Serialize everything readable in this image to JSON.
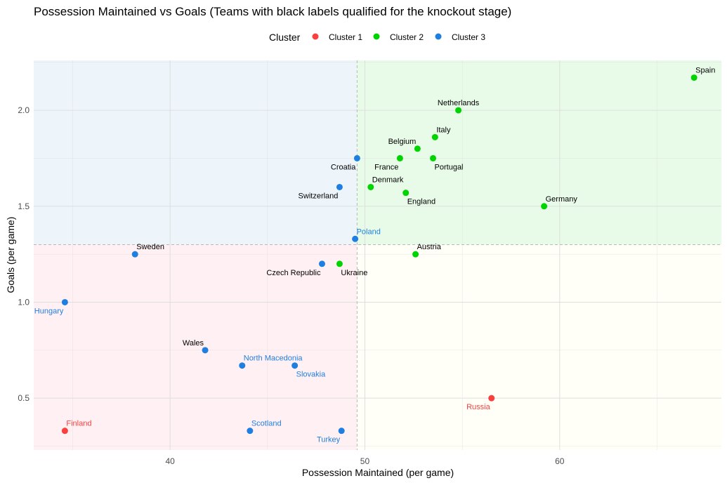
{
  "chart_data": {
    "type": "scatter",
    "title": "Possession Maintained vs Goals (Teams with black labels qualified for the knockout stage)",
    "xlabel": "Possession Maintained (per game)",
    "ylabel": "Goals (per game)",
    "xlim": [
      33.0,
      68.3
    ],
    "ylim": [
      0.23,
      2.26
    ],
    "x_ticks": [
      40,
      50,
      60
    ],
    "y_ticks": [
      0.5,
      1.0,
      1.5,
      2.0
    ],
    "grid": true,
    "legend": {
      "title": "Cluster",
      "position": "top",
      "entries": [
        {
          "name": "Cluster 1",
          "color": "#f8413e"
        },
        {
          "name": "Cluster 2",
          "color": "#00d400"
        },
        {
          "name": "Cluster 3",
          "color": "#1f7fe0"
        }
      ]
    },
    "reference_lines": {
      "x": 49.6,
      "y": 1.3
    },
    "quadrant_colors": {
      "top_left": "#edf5fa",
      "top_right": "#e8fbe8",
      "bottom_left": "#fff0f3",
      "bottom_right": "#fffef7"
    },
    "qualified_label_color": "#000000",
    "points": [
      {
        "team": "Spain",
        "x": 66.9,
        "y": 2.17,
        "cluster": 2,
        "qualified": true,
        "label_pos": "above-right"
      },
      {
        "team": "Netherlands",
        "x": 54.8,
        "y": 2.0,
        "cluster": 2,
        "qualified": true,
        "label_pos": "above"
      },
      {
        "team": "Italy",
        "x": 53.6,
        "y": 1.86,
        "cluster": 2,
        "qualified": true,
        "label_pos": "above-right"
      },
      {
        "team": "Belgium",
        "x": 52.7,
        "y": 1.8,
        "cluster": 2,
        "qualified": true,
        "label_pos": "above-left"
      },
      {
        "team": "France",
        "x": 51.8,
        "y": 1.75,
        "cluster": 2,
        "qualified": true,
        "label_pos": "below-left"
      },
      {
        "team": "Portugal",
        "x": 53.5,
        "y": 1.75,
        "cluster": 2,
        "qualified": true,
        "label_pos": "below-right"
      },
      {
        "team": "Croatia",
        "x": 49.6,
        "y": 1.75,
        "cluster": 3,
        "qualified": true,
        "label_pos": "below-left"
      },
      {
        "team": "Denmark",
        "x": 50.3,
        "y": 1.6,
        "cluster": 2,
        "qualified": true,
        "label_pos": "above-right"
      },
      {
        "team": "Switzerland",
        "x": 48.7,
        "y": 1.6,
        "cluster": 3,
        "qualified": true,
        "label_pos": "below-left"
      },
      {
        "team": "England",
        "x": 52.1,
        "y": 1.57,
        "cluster": 2,
        "qualified": true,
        "label_pos": "below-right"
      },
      {
        "team": "Germany",
        "x": 59.2,
        "y": 1.5,
        "cluster": 2,
        "qualified": true,
        "label_pos": "above-right"
      },
      {
        "team": "Poland",
        "x": 49.5,
        "y": 1.33,
        "cluster": 3,
        "qualified": false,
        "label_pos": "above-right"
      },
      {
        "team": "Austria",
        "x": 52.6,
        "y": 1.25,
        "cluster": 2,
        "qualified": true,
        "label_pos": "above-right"
      },
      {
        "team": "Sweden",
        "x": 38.2,
        "y": 1.25,
        "cluster": 3,
        "qualified": true,
        "label_pos": "above-right"
      },
      {
        "team": "Czech Republic",
        "x": 47.8,
        "y": 1.2,
        "cluster": 3,
        "qualified": true,
        "label_pos": "below-left"
      },
      {
        "team": "Ukraine",
        "x": 48.7,
        "y": 1.2,
        "cluster": 2,
        "qualified": true,
        "label_pos": "below-right"
      },
      {
        "team": "Hungary",
        "x": 34.6,
        "y": 1.0,
        "cluster": 3,
        "qualified": false,
        "label_pos": "below-left"
      },
      {
        "team": "Wales",
        "x": 41.8,
        "y": 0.75,
        "cluster": 3,
        "qualified": true,
        "label_pos": "above-left"
      },
      {
        "team": "North Macedonia",
        "x": 43.7,
        "y": 0.67,
        "cluster": 3,
        "qualified": false,
        "label_pos": "above-right"
      },
      {
        "team": "Slovakia",
        "x": 46.4,
        "y": 0.67,
        "cluster": 3,
        "qualified": false,
        "label_pos": "below-right"
      },
      {
        "team": "Russia",
        "x": 56.5,
        "y": 0.5,
        "cluster": 1,
        "qualified": false,
        "label_pos": "below-left"
      },
      {
        "team": "Finland",
        "x": 34.6,
        "y": 0.33,
        "cluster": 1,
        "qualified": false,
        "label_pos": "above-right"
      },
      {
        "team": "Scotland",
        "x": 44.1,
        "y": 0.33,
        "cluster": 3,
        "qualified": false,
        "label_pos": "above-right"
      },
      {
        "team": "Turkey",
        "x": 48.8,
        "y": 0.33,
        "cluster": 3,
        "qualified": false,
        "label_pos": "below-left"
      }
    ]
  }
}
